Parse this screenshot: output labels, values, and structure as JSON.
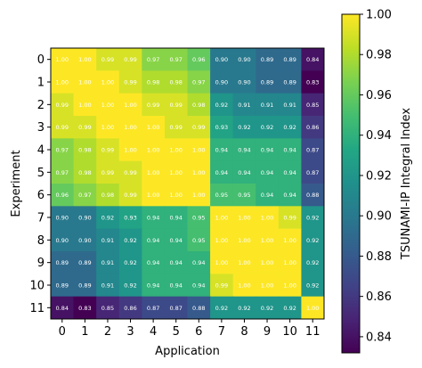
{
  "chart_data": {
    "type": "heatmap",
    "title": "",
    "xlabel": "Application",
    "ylabel": "Experiment",
    "x_categories": [
      "0",
      "1",
      "2",
      "3",
      "4",
      "5",
      "6",
      "7",
      "8",
      "9",
      "10",
      "11"
    ],
    "y_categories": [
      "0",
      "1",
      "2",
      "3",
      "4",
      "5",
      "6",
      "7",
      "8",
      "9",
      "10",
      "11"
    ],
    "values": [
      [
        1.0,
        1.0,
        0.99,
        0.99,
        0.97,
        0.97,
        0.96,
        0.9,
        0.9,
        0.89,
        0.89,
        0.84
      ],
      [
        1.0,
        1.0,
        1.0,
        0.99,
        0.98,
        0.98,
        0.97,
        0.9,
        0.9,
        0.89,
        0.89,
        0.83
      ],
      [
        0.99,
        1.0,
        1.0,
        1.0,
        0.99,
        0.99,
        0.98,
        0.92,
        0.91,
        0.91,
        0.91,
        0.85
      ],
      [
        0.99,
        0.99,
        1.0,
        1.0,
        1.0,
        0.99,
        0.99,
        0.93,
        0.92,
        0.92,
        0.92,
        0.86
      ],
      [
        0.97,
        0.98,
        0.99,
        1.0,
        1.0,
        1.0,
        1.0,
        0.94,
        0.94,
        0.94,
        0.94,
        0.87
      ],
      [
        0.97,
        0.98,
        0.99,
        0.99,
        1.0,
        1.0,
        1.0,
        0.94,
        0.94,
        0.94,
        0.94,
        0.87
      ],
      [
        0.96,
        0.97,
        0.98,
        0.99,
        1.0,
        1.0,
        1.0,
        0.95,
        0.95,
        0.94,
        0.94,
        0.88
      ],
      [
        0.9,
        0.9,
        0.92,
        0.93,
        0.94,
        0.94,
        0.95,
        1.0,
        1.0,
        1.0,
        0.99,
        0.92
      ],
      [
        0.9,
        0.9,
        0.91,
        0.92,
        0.94,
        0.94,
        0.95,
        1.0,
        1.0,
        1.0,
        1.0,
        0.92
      ],
      [
        0.89,
        0.89,
        0.91,
        0.92,
        0.94,
        0.94,
        0.94,
        1.0,
        1.0,
        1.0,
        1.0,
        0.92
      ],
      [
        0.89,
        0.89,
        0.91,
        0.92,
        0.94,
        0.94,
        0.94,
        0.99,
        1.0,
        1.0,
        1.0,
        0.92
      ],
      [
        0.84,
        0.83,
        0.85,
        0.86,
        0.87,
        0.87,
        0.88,
        0.92,
        0.92,
        0.92,
        0.92,
        1.0
      ]
    ],
    "colorbar": {
      "label": "TSUNAMI-IP Integral Index",
      "range": [
        0.832,
        1.0
      ],
      "ticks": [
        "0.84",
        "0.86",
        "0.88",
        "0.90",
        "0.92",
        "0.94",
        "0.96",
        "0.98",
        "1.00"
      ],
      "tick_values": [
        0.84,
        0.86,
        0.88,
        0.9,
        0.92,
        0.94,
        0.96,
        0.98,
        1.0
      ],
      "colormap": "viridis"
    },
    "grid": false
  }
}
